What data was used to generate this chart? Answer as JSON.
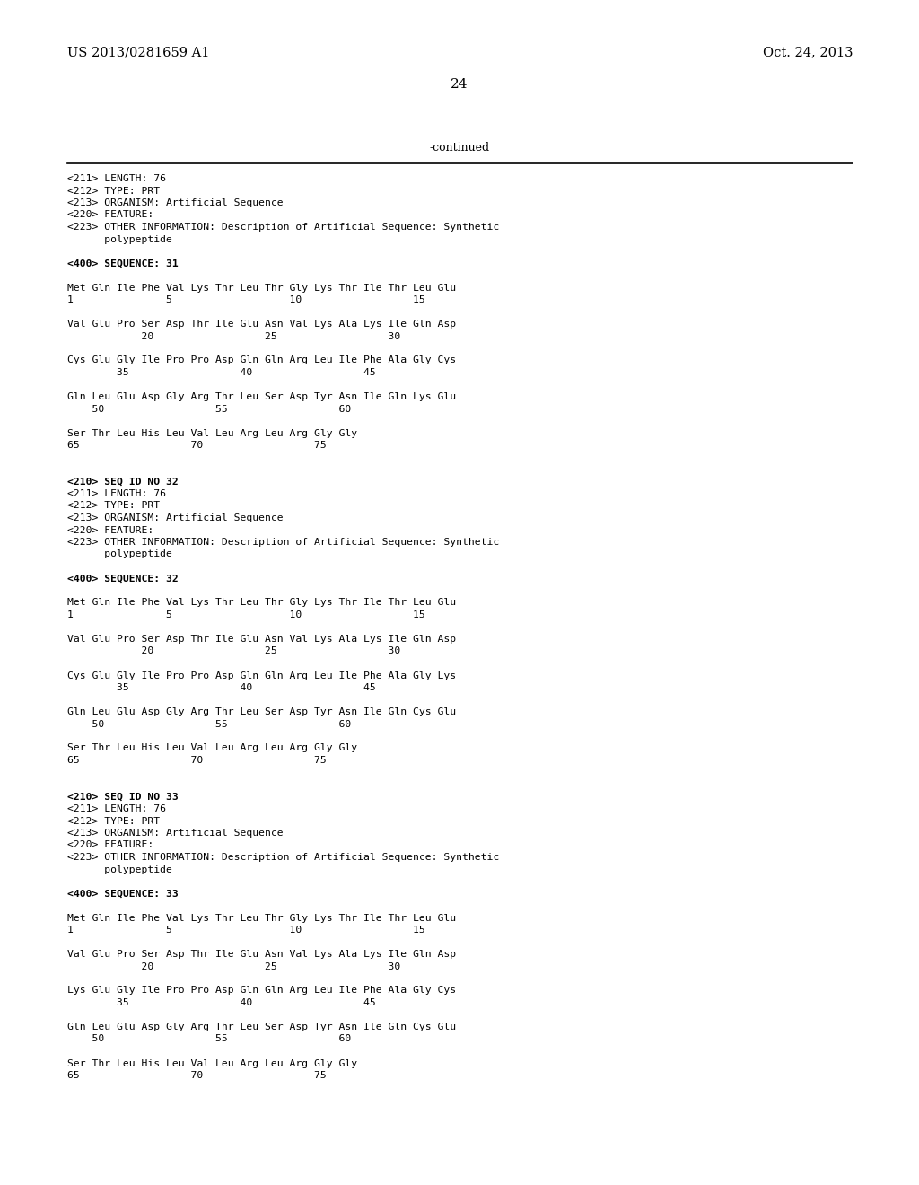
{
  "header_left": "US 2013/0281659 A1",
  "header_right": "Oct. 24, 2013",
  "page_number": "24",
  "continued_label": "-continued",
  "background_color": "#ffffff",
  "text_color": "#000000",
  "fig_width": 10.24,
  "fig_height": 13.2,
  "dpi": 100,
  "mono_size": 8.2,
  "lines": [
    {
      "text": "<211> LENGTH: 76",
      "indent": 0
    },
    {
      "text": "<212> TYPE: PRT",
      "indent": 0
    },
    {
      "text": "<213> ORGANISM: Artificial Sequence",
      "indent": 0
    },
    {
      "text": "<220> FEATURE:",
      "indent": 0
    },
    {
      "text": "<223> OTHER INFORMATION: Description of Artificial Sequence: Synthetic",
      "indent": 0
    },
    {
      "text": "      polypeptide",
      "indent": 0
    },
    {
      "text": "",
      "indent": 0
    },
    {
      "text": "<400> SEQUENCE: 31",
      "indent": 0
    },
    {
      "text": "",
      "indent": 0
    },
    {
      "text": "Met Gln Ile Phe Val Lys Thr Leu Thr Gly Lys Thr Ile Thr Leu Glu",
      "indent": 0
    },
    {
      "text": "1               5                   10                  15",
      "indent": 0
    },
    {
      "text": "",
      "indent": 0
    },
    {
      "text": "Val Glu Pro Ser Asp Thr Ile Glu Asn Val Lys Ala Lys Ile Gln Asp",
      "indent": 0
    },
    {
      "text": "            20                  25                  30",
      "indent": 0
    },
    {
      "text": "",
      "indent": 0
    },
    {
      "text": "Cys Glu Gly Ile Pro Pro Asp Gln Gln Arg Leu Ile Phe Ala Gly Cys",
      "indent": 0
    },
    {
      "text": "        35                  40                  45",
      "indent": 0
    },
    {
      "text": "",
      "indent": 0
    },
    {
      "text": "Gln Leu Glu Asp Gly Arg Thr Leu Ser Asp Tyr Asn Ile Gln Lys Glu",
      "indent": 0
    },
    {
      "text": "    50                  55                  60",
      "indent": 0
    },
    {
      "text": "",
      "indent": 0
    },
    {
      "text": "Ser Thr Leu His Leu Val Leu Arg Leu Arg Gly Gly",
      "indent": 0
    },
    {
      "text": "65                  70                  75",
      "indent": 0
    },
    {
      "text": "",
      "indent": 0
    },
    {
      "text": "",
      "indent": 0
    },
    {
      "text": "<210> SEQ ID NO 32",
      "indent": 0
    },
    {
      "text": "<211> LENGTH: 76",
      "indent": 0
    },
    {
      "text": "<212> TYPE: PRT",
      "indent": 0
    },
    {
      "text": "<213> ORGANISM: Artificial Sequence",
      "indent": 0
    },
    {
      "text": "<220> FEATURE:",
      "indent": 0
    },
    {
      "text": "<223> OTHER INFORMATION: Description of Artificial Sequence: Synthetic",
      "indent": 0
    },
    {
      "text": "      polypeptide",
      "indent": 0
    },
    {
      "text": "",
      "indent": 0
    },
    {
      "text": "<400> SEQUENCE: 32",
      "indent": 0
    },
    {
      "text": "",
      "indent": 0
    },
    {
      "text": "Met Gln Ile Phe Val Lys Thr Leu Thr Gly Lys Thr Ile Thr Leu Glu",
      "indent": 0
    },
    {
      "text": "1               5                   10                  15",
      "indent": 0
    },
    {
      "text": "",
      "indent": 0
    },
    {
      "text": "Val Glu Pro Ser Asp Thr Ile Glu Asn Val Lys Ala Lys Ile Gln Asp",
      "indent": 0
    },
    {
      "text": "            20                  25                  30",
      "indent": 0
    },
    {
      "text": "",
      "indent": 0
    },
    {
      "text": "Cys Glu Gly Ile Pro Pro Asp Gln Gln Arg Leu Ile Phe Ala Gly Lys",
      "indent": 0
    },
    {
      "text": "        35                  40                  45",
      "indent": 0
    },
    {
      "text": "",
      "indent": 0
    },
    {
      "text": "Gln Leu Glu Asp Gly Arg Thr Leu Ser Asp Tyr Asn Ile Gln Cys Glu",
      "indent": 0
    },
    {
      "text": "    50                  55                  60",
      "indent": 0
    },
    {
      "text": "",
      "indent": 0
    },
    {
      "text": "Ser Thr Leu His Leu Val Leu Arg Leu Arg Gly Gly",
      "indent": 0
    },
    {
      "text": "65                  70                  75",
      "indent": 0
    },
    {
      "text": "",
      "indent": 0
    },
    {
      "text": "",
      "indent": 0
    },
    {
      "text": "<210> SEQ ID NO 33",
      "indent": 0
    },
    {
      "text": "<211> LENGTH: 76",
      "indent": 0
    },
    {
      "text": "<212> TYPE: PRT",
      "indent": 0
    },
    {
      "text": "<213> ORGANISM: Artificial Sequence",
      "indent": 0
    },
    {
      "text": "<220> FEATURE:",
      "indent": 0
    },
    {
      "text": "<223> OTHER INFORMATION: Description of Artificial Sequence: Synthetic",
      "indent": 0
    },
    {
      "text": "      polypeptide",
      "indent": 0
    },
    {
      "text": "",
      "indent": 0
    },
    {
      "text": "<400> SEQUENCE: 33",
      "indent": 0
    },
    {
      "text": "",
      "indent": 0
    },
    {
      "text": "Met Gln Ile Phe Val Lys Thr Leu Thr Gly Lys Thr Ile Thr Leu Glu",
      "indent": 0
    },
    {
      "text": "1               5                   10                  15",
      "indent": 0
    },
    {
      "text": "",
      "indent": 0
    },
    {
      "text": "Val Glu Pro Ser Asp Thr Ile Glu Asn Val Lys Ala Lys Ile Gln Asp",
      "indent": 0
    },
    {
      "text": "            20                  25                  30",
      "indent": 0
    },
    {
      "text": "",
      "indent": 0
    },
    {
      "text": "Lys Glu Gly Ile Pro Pro Asp Gln Gln Arg Leu Ile Phe Ala Gly Cys",
      "indent": 0
    },
    {
      "text": "        35                  40                  45",
      "indent": 0
    },
    {
      "text": "",
      "indent": 0
    },
    {
      "text": "Gln Leu Glu Asp Gly Arg Thr Leu Ser Asp Tyr Asn Ile Gln Cys Glu",
      "indent": 0
    },
    {
      "text": "    50                  55                  60",
      "indent": 0
    },
    {
      "text": "",
      "indent": 0
    },
    {
      "text": "Ser Thr Leu His Leu Val Leu Arg Leu Arg Gly Gly",
      "indent": 0
    },
    {
      "text": "65                  70                  75",
      "indent": 0
    }
  ]
}
